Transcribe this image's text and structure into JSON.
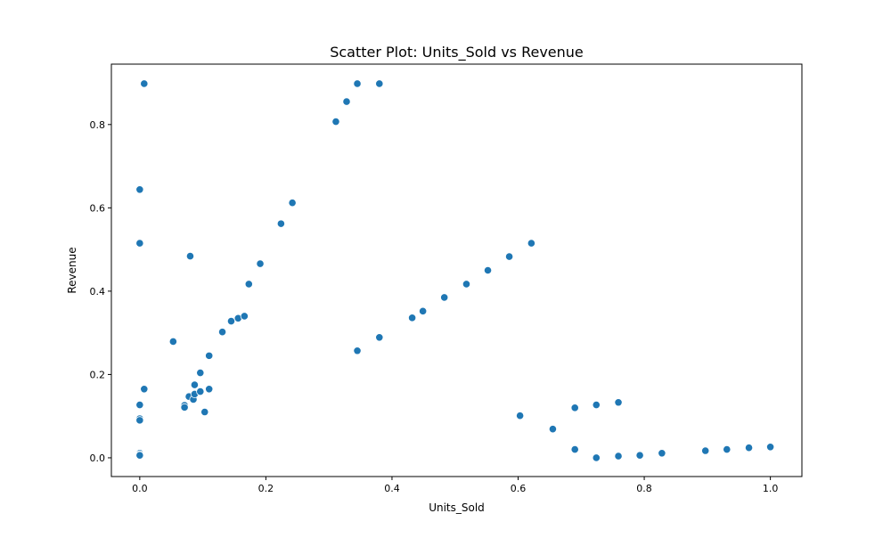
{
  "chart_data": {
    "type": "scatter",
    "title": "Scatter Plot: Units_Sold vs Revenue",
    "xlabel": "Units_Sold",
    "ylabel": "Revenue",
    "xlim": [
      -0.045,
      1.05
    ],
    "ylim": [
      -0.045,
      0.945
    ],
    "xticks": [
      0.0,
      0.2,
      0.4,
      0.6,
      0.8,
      1.0
    ],
    "yticks": [
      0.0,
      0.2,
      0.4,
      0.6,
      0.8
    ],
    "xtick_labels": [
      "0.0",
      "0.2",
      "0.4",
      "0.6",
      "0.8",
      "1.0"
    ],
    "ytick_labels": [
      "0.0",
      "0.2",
      "0.4",
      "0.6",
      "0.8"
    ],
    "grid": false,
    "marker_color": "#1f77b4",
    "x": [
      0.007,
      0.0,
      0.0,
      0.007,
      0.0,
      0.0,
      0.0,
      0.0,
      0.0,
      0.0,
      0.053,
      0.071,
      0.071,
      0.078,
      0.08,
      0.085,
      0.087,
      0.087,
      0.096,
      0.096,
      0.103,
      0.11,
      0.11,
      0.131,
      0.145,
      0.156,
      0.166,
      0.173,
      0.191,
      0.224,
      0.242,
      0.311,
      0.328,
      0.345,
      0.38,
      0.345,
      0.38,
      0.432,
      0.449,
      0.483,
      0.518,
      0.552,
      0.586,
      0.621,
      0.603,
      0.655,
      0.69,
      0.724,
      0.759,
      0.69,
      0.724,
      0.759,
      0.793,
      0.828,
      0.897,
      0.931,
      0.966,
      1.0
    ],
    "y": [
      0.898,
      0.644,
      0.515,
      0.165,
      0.127,
      0.094,
      0.09,
      0.011,
      0.008,
      0.006,
      0.279,
      0.126,
      0.121,
      0.147,
      0.484,
      0.14,
      0.153,
      0.175,
      0.159,
      0.204,
      0.11,
      0.165,
      0.245,
      0.302,
      0.328,
      0.335,
      0.34,
      0.417,
      0.466,
      0.562,
      0.612,
      0.807,
      0.855,
      0.898,
      0.898,
      0.257,
      0.289,
      0.336,
      0.352,
      0.385,
      0.417,
      0.45,
      0.483,
      0.515,
      0.101,
      0.069,
      0.02,
      0.127,
      0.133,
      0.12,
      0.0,
      0.004,
      0.006,
      0.011,
      0.017,
      0.02,
      0.024,
      0.026
    ]
  }
}
